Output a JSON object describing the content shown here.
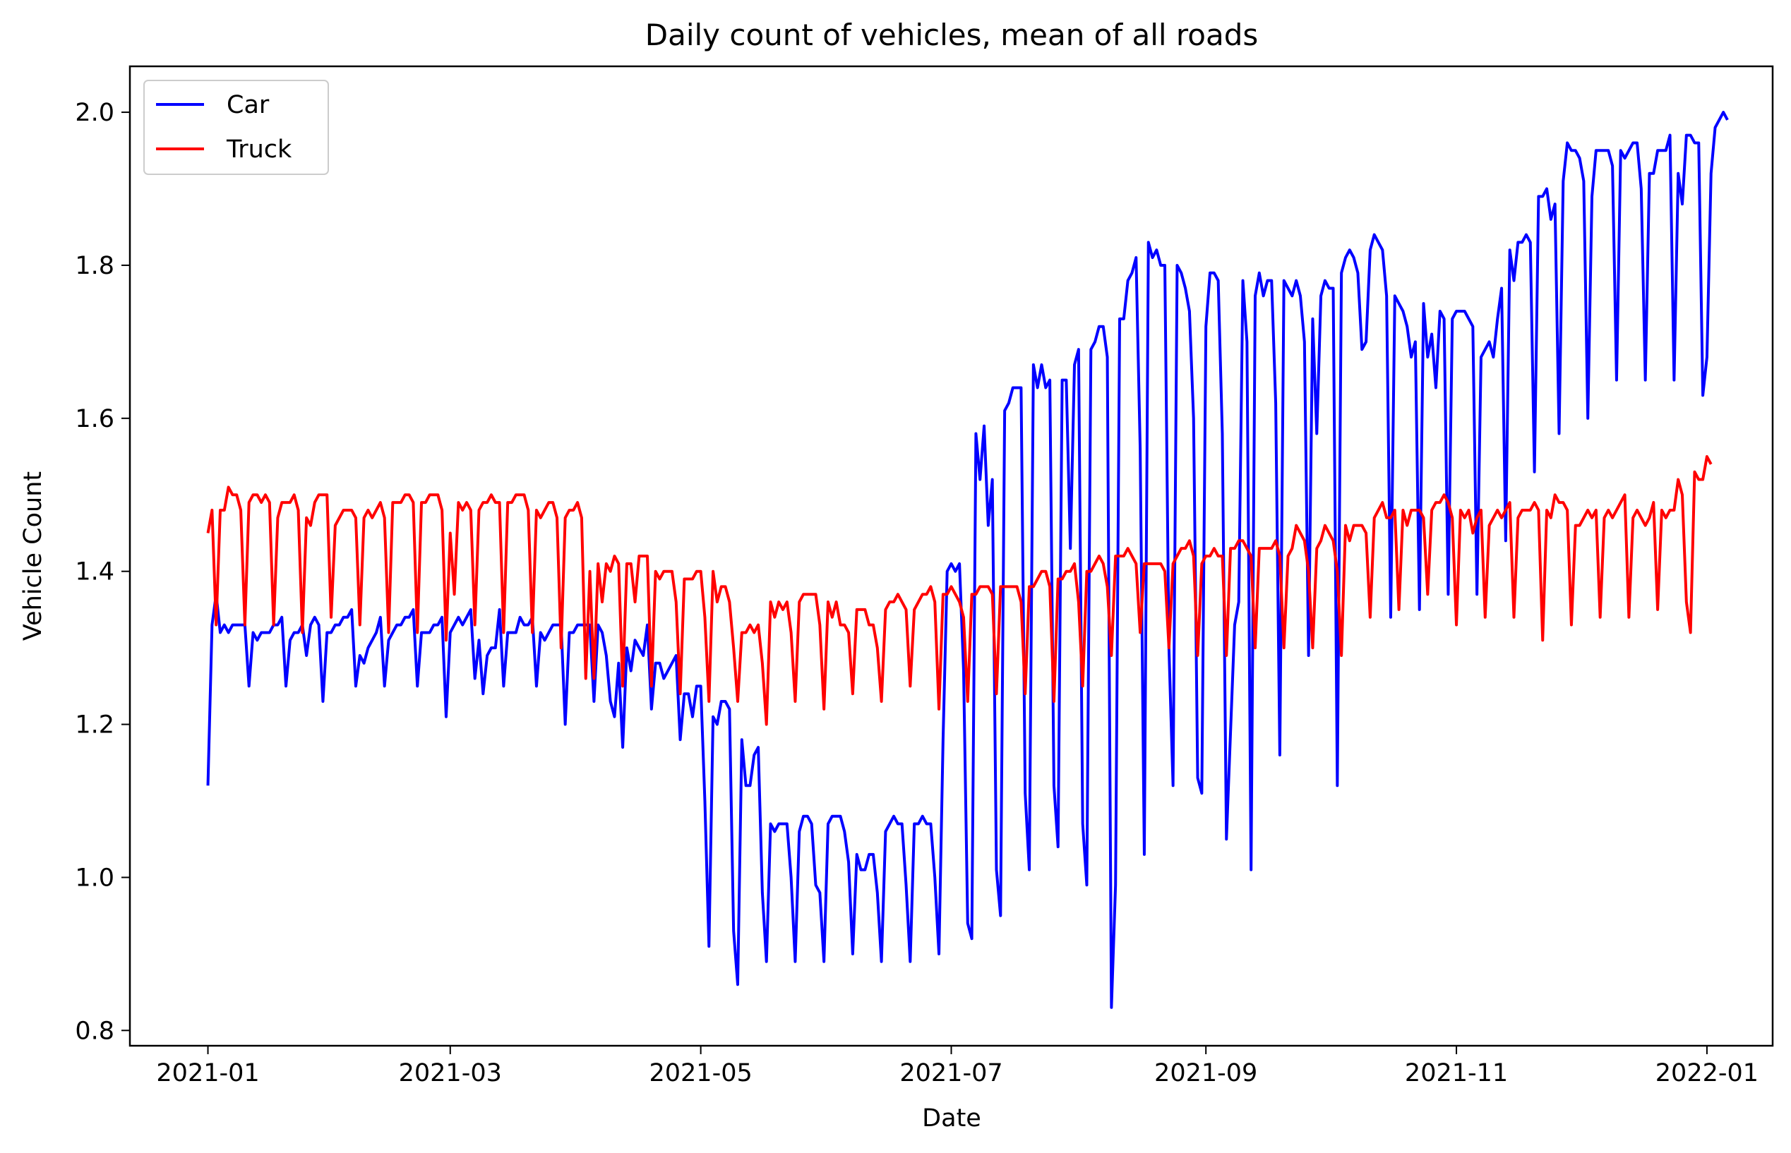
{
  "chart_data": {
    "type": "line",
    "title": "Daily count of vehicles, mean of all roads",
    "xlabel": "Date",
    "ylabel": "Vehicle Count",
    "x_range": [
      "2021-01-01",
      "2021-12-31"
    ],
    "xlim": [
      "2020-12-13",
      "2022-01-17"
    ],
    "ylim": [
      0.78,
      2.06
    ],
    "x_ticks": [
      "2021-01",
      "2021-03",
      "2021-05",
      "2021-07",
      "2021-09",
      "2021-11",
      "2022-01"
    ],
    "x_tick_dates": [
      "2021-01-01",
      "2021-03-01",
      "2021-05-01",
      "2021-07-01",
      "2021-09-01",
      "2021-11-01",
      "2022-01-01"
    ],
    "y_ticks": [
      0.8,
      1.0,
      1.2,
      1.4,
      1.6,
      1.8,
      2.0
    ],
    "y_tick_labels": [
      "0.8",
      "1.0",
      "1.2",
      "1.4",
      "1.6",
      "1.8",
      "2.0"
    ],
    "grid": false,
    "legend_position": "top-left",
    "series": [
      {
        "name": "Car",
        "color": "#0000ff",
        "values": [
          1.12,
          1.33,
          1.37,
          1.32,
          1.33,
          1.32,
          1.33,
          1.33,
          1.33,
          1.33,
          1.25,
          1.32,
          1.31,
          1.32,
          1.32,
          1.32,
          1.33,
          1.33,
          1.34,
          1.25,
          1.31,
          1.32,
          1.32,
          1.33,
          1.29,
          1.33,
          1.34,
          1.33,
          1.23,
          1.32,
          1.32,
          1.33,
          1.33,
          1.34,
          1.34,
          1.35,
          1.25,
          1.29,
          1.28,
          1.3,
          1.31,
          1.32,
          1.34,
          1.25,
          1.31,
          1.32,
          1.33,
          1.33,
          1.34,
          1.34,
          1.35,
          1.25,
          1.32,
          1.32,
          1.32,
          1.33,
          1.33,
          1.34,
          1.21,
          1.32,
          1.33,
          1.34,
          1.33,
          1.34,
          1.35,
          1.26,
          1.31,
          1.24,
          1.29,
          1.3,
          1.3,
          1.35,
          1.25,
          1.32,
          1.32,
          1.32,
          1.34,
          1.33,
          1.33,
          1.34,
          1.25,
          1.32,
          1.31,
          1.32,
          1.33,
          1.33,
          1.33,
          1.2,
          1.32,
          1.32,
          1.33,
          1.33,
          1.33,
          1.33,
          1.23,
          1.33,
          1.32,
          1.29,
          1.23,
          1.21,
          1.28,
          1.17,
          1.3,
          1.27,
          1.31,
          1.3,
          1.29,
          1.33,
          1.22,
          1.28,
          1.28,
          1.26,
          1.27,
          1.28,
          1.29,
          1.18,
          1.24,
          1.24,
          1.21,
          1.25,
          1.25,
          1.1,
          0.91,
          1.21,
          1.2,
          1.23,
          1.23,
          1.22,
          0.93,
          0.86,
          1.18,
          1.12,
          1.12,
          1.16,
          1.17,
          0.98,
          0.89,
          1.07,
          1.06,
          1.07,
          1.07,
          1.07,
          1.0,
          0.89,
          1.06,
          1.08,
          1.08,
          1.07,
          0.99,
          0.98,
          0.89,
          1.07,
          1.08,
          1.08,
          1.08,
          1.06,
          1.02,
          0.9,
          1.03,
          1.01,
          1.01,
          1.03,
          1.03,
          0.98,
          0.89,
          1.06,
          1.07,
          1.08,
          1.07,
          1.07,
          0.99,
          0.89,
          1.07,
          1.07,
          1.08,
          1.07,
          1.07,
          1.0,
          0.9,
          1.18,
          1.4,
          1.41,
          1.4,
          1.41,
          1.27,
          0.94,
          0.92,
          1.58,
          1.52,
          1.59,
          1.46,
          1.52,
          1.01,
          0.95,
          1.61,
          1.62,
          1.64,
          1.64,
          1.64,
          1.11,
          1.01,
          1.67,
          1.64,
          1.67,
          1.64,
          1.65,
          1.12,
          1.04,
          1.65,
          1.65,
          1.43,
          1.67,
          1.69,
          1.07,
          0.99,
          1.69,
          1.7,
          1.72,
          1.72,
          1.68,
          0.83,
          0.99,
          1.73,
          1.73,
          1.78,
          1.79,
          1.81,
          1.56,
          1.03,
          1.83,
          1.81,
          1.82,
          1.8,
          1.8,
          1.3,
          1.12,
          1.8,
          1.79,
          1.77,
          1.74,
          1.6,
          1.13,
          1.11,
          1.72,
          1.79,
          1.79,
          1.78,
          1.58,
          1.05,
          1.19,
          1.33,
          1.36,
          1.78,
          1.7,
          1.01,
          1.76,
          1.79,
          1.76,
          1.78,
          1.78,
          1.62,
          1.16,
          1.78,
          1.77,
          1.76,
          1.78,
          1.76,
          1.7,
          1.29,
          1.73,
          1.58,
          1.76,
          1.78,
          1.77,
          1.77,
          1.12,
          1.79,
          1.81,
          1.82,
          1.81,
          1.79,
          1.69,
          1.7,
          1.82,
          1.84,
          1.83,
          1.82,
          1.76,
          1.34,
          1.76,
          1.75,
          1.74,
          1.72,
          1.68,
          1.7,
          1.35,
          1.75,
          1.68,
          1.71,
          1.64,
          1.74,
          1.73,
          1.37,
          1.73,
          1.74,
          1.74,
          1.74,
          1.73,
          1.72,
          1.37,
          1.68,
          1.69,
          1.7,
          1.68,
          1.73,
          1.77,
          1.44,
          1.82,
          1.78,
          1.83,
          1.83,
          1.84,
          1.83,
          1.53,
          1.89,
          1.89,
          1.9,
          1.86,
          1.88,
          1.58,
          1.91,
          1.96,
          1.95,
          1.95,
          1.94,
          1.91,
          1.6,
          1.89,
          1.95,
          1.95,
          1.95,
          1.95,
          1.93,
          1.65,
          1.95,
          1.94,
          1.95,
          1.96,
          1.96,
          1.9,
          1.65,
          1.92,
          1.92,
          1.95,
          1.95,
          1.95,
          1.97,
          1.65,
          1.92,
          1.88,
          1.97,
          1.97,
          1.96,
          1.96,
          1.63,
          1.68,
          1.92,
          1.98,
          1.99,
          2.0,
          1.99
        ]
      },
      {
        "name": "Truck",
        "color": "#ff0000",
        "values": [
          1.45,
          1.48,
          1.33,
          1.48,
          1.48,
          1.51,
          1.5,
          1.5,
          1.48,
          1.33,
          1.49,
          1.5,
          1.5,
          1.49,
          1.5,
          1.49,
          1.33,
          1.47,
          1.49,
          1.49,
          1.49,
          1.5,
          1.48,
          1.32,
          1.47,
          1.46,
          1.49,
          1.5,
          1.5,
          1.5,
          1.34,
          1.46,
          1.47,
          1.48,
          1.48,
          1.48,
          1.47,
          1.33,
          1.47,
          1.48,
          1.47,
          1.48,
          1.49,
          1.47,
          1.32,
          1.49,
          1.49,
          1.49,
          1.5,
          1.5,
          1.49,
          1.32,
          1.49,
          1.49,
          1.5,
          1.5,
          1.5,
          1.48,
          1.31,
          1.45,
          1.37,
          1.49,
          1.48,
          1.49,
          1.48,
          1.33,
          1.48,
          1.49,
          1.49,
          1.5,
          1.49,
          1.49,
          1.32,
          1.49,
          1.49,
          1.5,
          1.5,
          1.5,
          1.48,
          1.32,
          1.48,
          1.47,
          1.48,
          1.49,
          1.49,
          1.47,
          1.3,
          1.47,
          1.48,
          1.48,
          1.49,
          1.47,
          1.26,
          1.4,
          1.26,
          1.41,
          1.36,
          1.41,
          1.4,
          1.42,
          1.41,
          1.25,
          1.41,
          1.41,
          1.36,
          1.42,
          1.42,
          1.42,
          1.25,
          1.4,
          1.39,
          1.4,
          1.4,
          1.4,
          1.36,
          1.24,
          1.39,
          1.39,
          1.39,
          1.4,
          1.4,
          1.34,
          1.23,
          1.4,
          1.36,
          1.38,
          1.38,
          1.36,
          1.3,
          1.23,
          1.32,
          1.32,
          1.33,
          1.32,
          1.33,
          1.28,
          1.2,
          1.36,
          1.34,
          1.36,
          1.35,
          1.36,
          1.32,
          1.23,
          1.36,
          1.37,
          1.37,
          1.37,
          1.37,
          1.33,
          1.22,
          1.36,
          1.34,
          1.36,
          1.33,
          1.33,
          1.32,
          1.24,
          1.35,
          1.35,
          1.35,
          1.33,
          1.33,
          1.3,
          1.23,
          1.35,
          1.36,
          1.36,
          1.37,
          1.36,
          1.35,
          1.25,
          1.35,
          1.36,
          1.37,
          1.37,
          1.38,
          1.36,
          1.22,
          1.37,
          1.37,
          1.38,
          1.37,
          1.36,
          1.34,
          1.23,
          1.37,
          1.37,
          1.38,
          1.38,
          1.38,
          1.37,
          1.24,
          1.38,
          1.38,
          1.38,
          1.38,
          1.38,
          1.36,
          1.24,
          1.38,
          1.38,
          1.39,
          1.4,
          1.4,
          1.38,
          1.23,
          1.39,
          1.39,
          1.4,
          1.4,
          1.41,
          1.36,
          1.25,
          1.4,
          1.4,
          1.41,
          1.42,
          1.41,
          1.38,
          1.29,
          1.42,
          1.42,
          1.42,
          1.43,
          1.42,
          1.41,
          1.32,
          1.41,
          1.41,
          1.41,
          1.41,
          1.41,
          1.4,
          1.3,
          1.41,
          1.42,
          1.43,
          1.43,
          1.44,
          1.42,
          1.29,
          1.41,
          1.42,
          1.42,
          1.43,
          1.42,
          1.42,
          1.29,
          1.43,
          1.43,
          1.44,
          1.44,
          1.43,
          1.42,
          1.3,
          1.43,
          1.43,
          1.43,
          1.43,
          1.44,
          1.42,
          1.3,
          1.42,
          1.43,
          1.46,
          1.45,
          1.44,
          1.4,
          1.3,
          1.43,
          1.44,
          1.46,
          1.45,
          1.44,
          1.4,
          1.29,
          1.46,
          1.44,
          1.46,
          1.46,
          1.46,
          1.45,
          1.34,
          1.47,
          1.48,
          1.49,
          1.47,
          1.47,
          1.48,
          1.35,
          1.48,
          1.46,
          1.48,
          1.48,
          1.48,
          1.47,
          1.37,
          1.48,
          1.49,
          1.49,
          1.5,
          1.49,
          1.47,
          1.33,
          1.48,
          1.47,
          1.48,
          1.45,
          1.47,
          1.48,
          1.34,
          1.46,
          1.47,
          1.48,
          1.47,
          1.48,
          1.49,
          1.34,
          1.47,
          1.48,
          1.48,
          1.48,
          1.49,
          1.48,
          1.31,
          1.48,
          1.47,
          1.5,
          1.49,
          1.49,
          1.48,
          1.33,
          1.46,
          1.46,
          1.47,
          1.48,
          1.47,
          1.48,
          1.34,
          1.47,
          1.48,
          1.47,
          1.48,
          1.49,
          1.5,
          1.34,
          1.47,
          1.48,
          1.47,
          1.46,
          1.47,
          1.49,
          1.35,
          1.48,
          1.47,
          1.48,
          1.48,
          1.52,
          1.5,
          1.36,
          1.32,
          1.53,
          1.52,
          1.52,
          1.55,
          1.54
        ]
      }
    ]
  }
}
